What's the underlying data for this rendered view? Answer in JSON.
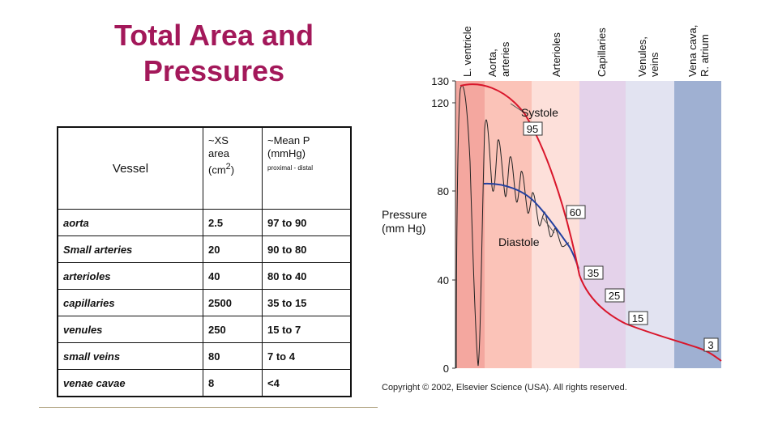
{
  "title": "Total Area and Pressures",
  "table": {
    "headers": {
      "vessel": "Vessel",
      "area_line1": "~XS",
      "area_line2": "area",
      "area_line3": "(cm",
      "area_sup": "2",
      "area_close": ")",
      "pressure_line1": "~Mean P",
      "pressure_line2": "(mmHg)",
      "pressure_sub": "proximal - distal"
    },
    "rows": [
      {
        "vessel": "aorta",
        "area": "2.5",
        "pressure": "97 to 90"
      },
      {
        "vessel": "Small arteries",
        "area": "20",
        "pressure": "90 to 80"
      },
      {
        "vessel": "arterioles",
        "area": "40",
        "pressure": "80 to 40"
      },
      {
        "vessel": "capillaries",
        "area": "2500",
        "pressure": "35 to 15"
      },
      {
        "vessel": "venules",
        "area": "250",
        "pressure": "15 to  7"
      },
      {
        "vessel": "small veins",
        "area": "80",
        "pressure": "  7 to  4"
      },
      {
        "vessel": "venae cavae",
        "area": "8",
        "pressure": "<4"
      }
    ]
  },
  "figure": {
    "regions": [
      {
        "label": "L. ventricle",
        "color": "#f4a79f"
      },
      {
        "label": "Aorta, arteries",
        "color": "#fbc3b8"
      },
      {
        "label": "Arterioles",
        "color": "#fde0da"
      },
      {
        "label": "Capillaries",
        "color": "#e4d2ea"
      },
      {
        "label": "Venules, veins",
        "color": "#e2e3f1"
      },
      {
        "label": "Vena cava, R. atrium",
        "color": "#9fb0d2"
      }
    ],
    "y_axis_label_line1": "Pressure",
    "y_axis_label_line2": "(mm Hg)",
    "y_ticks": [
      "130",
      "120",
      "80",
      "40",
      "0"
    ],
    "annotations": {
      "systole": "Systole",
      "diastole": "Diastole",
      "v95": "95",
      "v60": "60",
      "v35": "35",
      "v25": "25",
      "v15": "15",
      "v3": "3"
    },
    "copyright": "Copyright © 2002, Elsevier Science (USA).  All rights reserved.",
    "curve_colors": {
      "systole": "#d9162b",
      "diastole": "#2340a0",
      "oscillation": "#222222"
    }
  }
}
